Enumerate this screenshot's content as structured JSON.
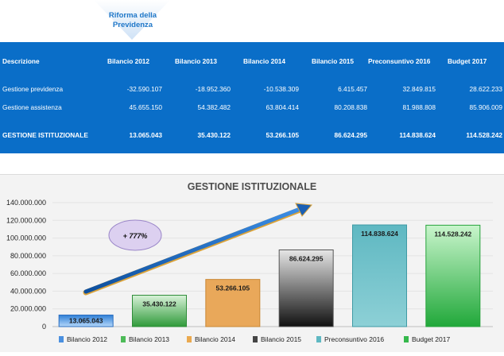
{
  "header": {
    "title_line1": "Riforma della",
    "title_line2": "Previdenza"
  },
  "table": {
    "columns": [
      "Descrizione",
      "Bilancio 2012",
      "Bilancio 2013",
      "Bilancio 2014",
      "Bilancio 2015",
      "Preconsuntivo 2016",
      "Budget 2017"
    ],
    "rows": [
      {
        "label": "Gestione previdenza",
        "values": [
          "-32.590.107",
          "-18.952.360",
          "-10.538.309",
          "6.415.457",
          "32.849.815",
          "28.622.233"
        ]
      },
      {
        "label": "Gestione assistenza",
        "values": [
          "45.655.150",
          "54.382.482",
          "63.804.414",
          "80.208.838",
          "81.988.808",
          "85.906.009"
        ]
      },
      {
        "label": "GESTIONE ISTITUZIONALE",
        "values": [
          "13.065.043",
          "35.430.122",
          "53.266.105",
          "86.624.295",
          "114.838.624",
          "114.528.242"
        ]
      }
    ]
  },
  "chart_data": {
    "type": "bar",
    "title": "GESTIONE ISTITUZIONALE",
    "categories": [
      "Bilancio 2012",
      "Bilancio 2013",
      "Bilancio 2014",
      "Bilancio 2015",
      "Preconsuntivo 2016",
      "Budget 2017"
    ],
    "values": [
      13065043,
      35430122,
      53266105,
      86624295,
      114838624,
      114528242
    ],
    "value_labels": [
      "13.065.043",
      "35.430.122",
      "53.266.105",
      "86.624.295",
      "114.838.624",
      "114.528.242"
    ],
    "yticks": [
      "0",
      "20.000.000",
      "40.000.000",
      "60.000.000",
      "80.000.000",
      "100.000.000",
      "120.000.000",
      "140.000.000"
    ],
    "ylim": [
      0,
      140000000
    ],
    "legend_position": "bottom",
    "annotation": "+ 777%",
    "colors": [
      "#3f8fe0",
      "#3fae4a",
      "#e8a550",
      "#555555",
      "#6cc0c7",
      "#4fc860"
    ]
  }
}
